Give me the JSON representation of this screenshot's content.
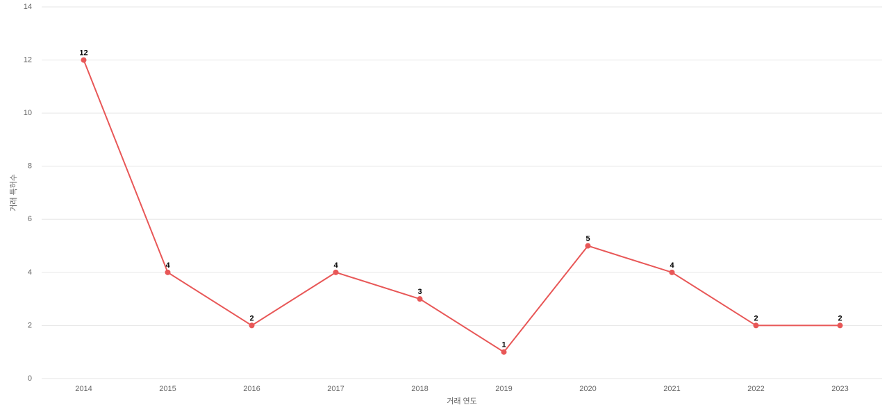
{
  "chart_data": {
    "type": "line",
    "x_label": "거래 연도",
    "y_label": "거래 특허수",
    "categories": [
      "2014",
      "2015",
      "2016",
      "2017",
      "2018",
      "2019",
      "2020",
      "2021",
      "2022",
      "2023"
    ],
    "series": [
      {
        "name": "거래 특허수",
        "color": "#e85757",
        "values": [
          12,
          4,
          2,
          4,
          3,
          1,
          5,
          4,
          2,
          2
        ]
      }
    ],
    "ylim": [
      0,
      14
    ],
    "yticks": [
      0,
      2,
      4,
      6,
      8,
      10,
      12,
      14
    ],
    "grid": true,
    "data_labels": true
  }
}
